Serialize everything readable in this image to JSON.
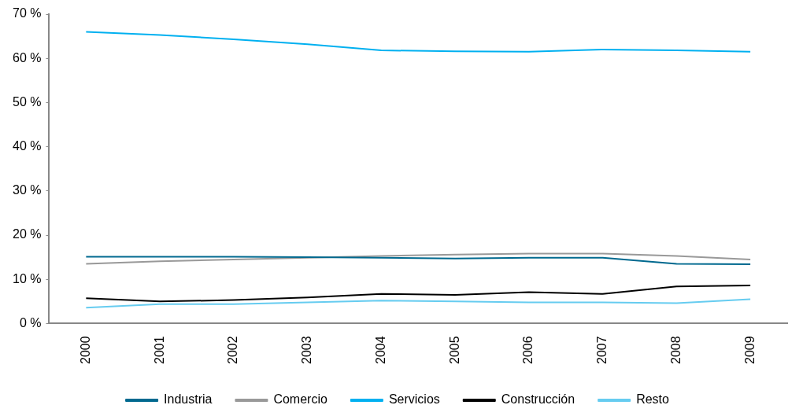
{
  "chart_data": {
    "type": "line",
    "categories": [
      "2000",
      "2001",
      "2002",
      "2003",
      "2004",
      "2005",
      "2006",
      "2007",
      "2008",
      "2009"
    ],
    "series": [
      {
        "name": "Industria",
        "color": "#00698f",
        "values": [
          15.1,
          15.1,
          15.1,
          15.0,
          14.9,
          14.7,
          14.9,
          14.9,
          13.5,
          13.4
        ]
      },
      {
        "name": "Comercio",
        "color": "#999999",
        "values": [
          13.5,
          14.1,
          14.5,
          14.9,
          15.3,
          15.6,
          15.8,
          15.8,
          15.3,
          14.5
        ]
      },
      {
        "name": "Servicios",
        "color": "#00b0f0",
        "values": [
          66.0,
          65.3,
          64.3,
          63.2,
          61.8,
          61.6,
          61.5,
          62.0,
          61.8,
          61.5
        ]
      },
      {
        "name": "Construcción",
        "color": "#000000",
        "values": [
          5.7,
          5.0,
          5.3,
          5.9,
          6.7,
          6.5,
          7.1,
          6.7,
          8.4,
          8.6
        ]
      },
      {
        "name": "Resto",
        "color": "#66ccf0",
        "values": [
          3.6,
          4.4,
          4.4,
          4.8,
          5.2,
          5.0,
          4.8,
          4.8,
          4.6,
          5.5
        ]
      }
    ],
    "ylim": [
      0,
      70
    ],
    "yticks": [
      {
        "value": 0,
        "label": "0 %"
      },
      {
        "value": 10,
        "label": "10 %"
      },
      {
        "value": 20,
        "label": "20 %"
      },
      {
        "value": 30,
        "label": "30 %"
      },
      {
        "value": 40,
        "label": "40 %"
      },
      {
        "value": 50,
        "label": "50 %"
      },
      {
        "value": 60,
        "label": "60 %"
      },
      {
        "value": 70,
        "label": "70 %"
      }
    ],
    "grid": false,
    "legend": "bottom",
    "marker": "none",
    "line_style": "solid"
  }
}
